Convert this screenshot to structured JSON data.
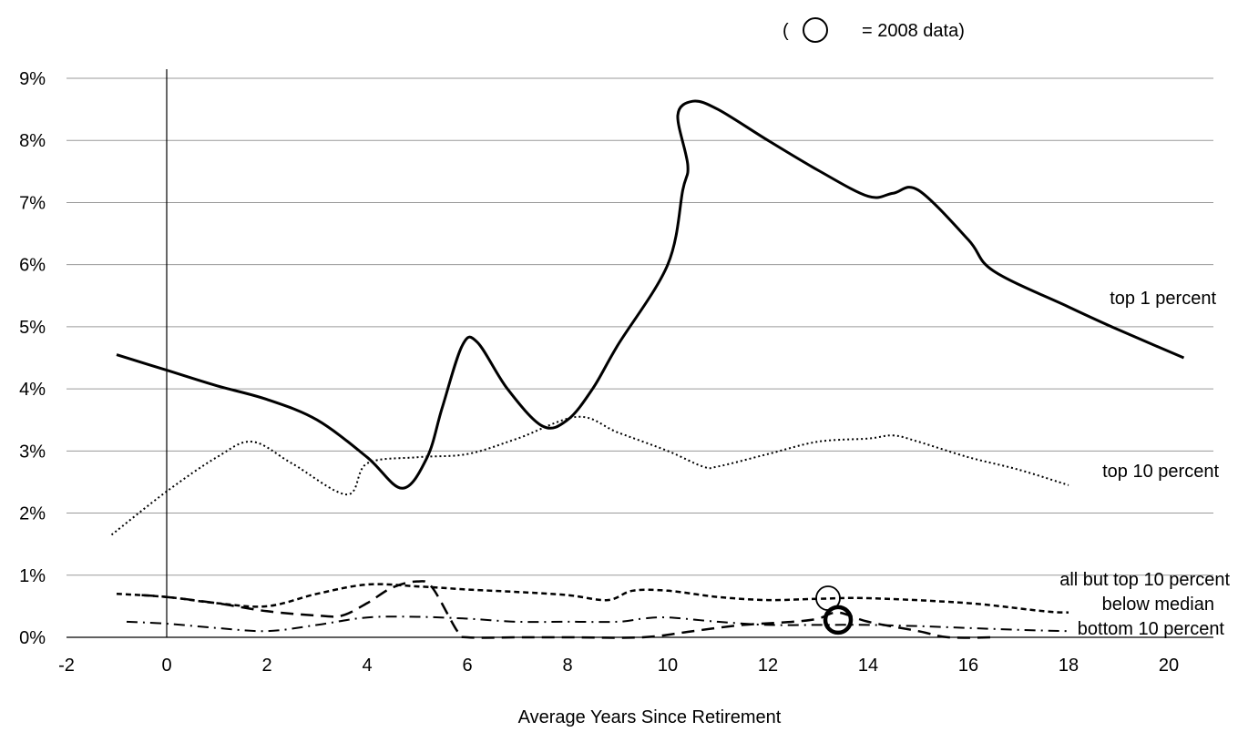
{
  "chart_data": {
    "type": "line",
    "title": "",
    "xlabel": "Average Years Since Retirement",
    "ylabel": "",
    "xlim": [
      -2,
      21
    ],
    "ylim": [
      0,
      0.09
    ],
    "x_ticks": [
      "-2",
      "0",
      "2",
      "4",
      "6",
      "8",
      "10",
      "12",
      "14",
      "16",
      "18",
      "20"
    ],
    "y_ticks": [
      "0%",
      "1%",
      "2%",
      "3%",
      "4%",
      "5%",
      "6%",
      "7%",
      "8%",
      "9%"
    ],
    "grid": "horizontal",
    "legend": "inline labels at line ends",
    "note": {
      "open": "(",
      "close": "= 2008 data)"
    },
    "series": [
      {
        "name": "top 1 percent",
        "points": [
          [
            -1,
            0.0455
          ],
          [
            0,
            0.043
          ],
          [
            1,
            0.0405
          ],
          [
            2,
            0.0383
          ],
          [
            3,
            0.035
          ],
          [
            4,
            0.029
          ],
          [
            4.7,
            0.024
          ],
          [
            5.2,
            0.029
          ],
          [
            5.5,
            0.037
          ],
          [
            5.9,
            0.047
          ],
          [
            6.2,
            0.0475
          ],
          [
            6.8,
            0.04
          ],
          [
            7.5,
            0.034
          ],
          [
            8,
            0.035
          ],
          [
            8.5,
            0.04
          ],
          [
            9,
            0.047
          ],
          [
            10,
            0.06
          ],
          [
            10.3,
            0.072
          ],
          [
            10.4,
            0.076
          ],
          [
            10.2,
            0.084
          ],
          [
            10.5,
            0.0863
          ],
          [
            11,
            0.085
          ],
          [
            12,
            0.08
          ],
          [
            13,
            0.0752
          ],
          [
            14,
            0.071
          ],
          [
            14.5,
            0.0715
          ],
          [
            15,
            0.072
          ],
          [
            16,
            0.064
          ],
          [
            16.5,
            0.059
          ],
          [
            18,
            0.0532
          ],
          [
            19,
            0.0495
          ],
          [
            20.3,
            0.045
          ]
        ]
      },
      {
        "name": "top 10 percent",
        "points": [
          [
            -1.1,
            0.0165
          ],
          [
            0,
            0.0235
          ],
          [
            1,
            0.029
          ],
          [
            1.7,
            0.0315
          ],
          [
            2.5,
            0.028
          ],
          [
            3.6,
            0.023
          ],
          [
            4,
            0.028
          ],
          [
            5,
            0.029
          ],
          [
            6,
            0.0295
          ],
          [
            7,
            0.032
          ],
          [
            8.2,
            0.0355
          ],
          [
            9,
            0.033
          ],
          [
            10,
            0.03
          ],
          [
            10.7,
            0.0275
          ],
          [
            11,
            0.0275
          ],
          [
            12,
            0.0295
          ],
          [
            13,
            0.0315
          ],
          [
            14,
            0.032
          ],
          [
            14.5,
            0.0325
          ],
          [
            15,
            0.0315
          ],
          [
            16,
            0.029
          ],
          [
            17,
            0.027
          ],
          [
            18,
            0.0245
          ]
        ]
      },
      {
        "name": "all but top 10 percent",
        "points": [
          [
            -1,
            0.007
          ],
          [
            0,
            0.0065
          ],
          [
            1,
            0.0055
          ],
          [
            2,
            0.005
          ],
          [
            3,
            0.007
          ],
          [
            4,
            0.0085
          ],
          [
            5,
            0.0082
          ],
          [
            6,
            0.0077
          ],
          [
            7,
            0.0073
          ],
          [
            8,
            0.0068
          ],
          [
            8.8,
            0.006
          ],
          [
            9.3,
            0.0075
          ],
          [
            10,
            0.0075
          ],
          [
            11,
            0.0065
          ],
          [
            12,
            0.006
          ],
          [
            13,
            0.0062
          ],
          [
            14,
            0.0063
          ],
          [
            16,
            0.0055
          ],
          [
            17.5,
            0.0042
          ],
          [
            18,
            0.004
          ]
        ]
      },
      {
        "name": "below median",
        "points": [
          [
            -0.5,
            0.0068
          ],
          [
            0,
            0.0065
          ],
          [
            1,
            0.0055
          ],
          [
            2,
            0.0042
          ],
          [
            3,
            0.0035
          ],
          [
            3.5,
            0.0035
          ],
          [
            4,
            0.0055
          ],
          [
            4.5,
            0.008
          ],
          [
            5,
            0.009
          ],
          [
            5.3,
            0.008
          ],
          [
            5.8,
            0.001
          ],
          [
            6,
            0.0
          ],
          [
            7,
            0.0
          ],
          [
            8,
            0.0
          ],
          [
            9.5,
            0.0
          ],
          [
            10.5,
            0.001
          ],
          [
            11.5,
            0.002
          ],
          [
            12.5,
            0.0025
          ],
          [
            13,
            0.003
          ],
          [
            13.4,
            0.004
          ],
          [
            14,
            0.0025
          ],
          [
            15,
            0.001
          ],
          [
            15.6,
            0.0
          ],
          [
            16.5,
            0.0
          ]
        ]
      },
      {
        "name": "bottom 10 percent",
        "points": [
          [
            -0.8,
            0.0025
          ],
          [
            0,
            0.0022
          ],
          [
            1,
            0.0015
          ],
          [
            2,
            0.001
          ],
          [
            3,
            0.002
          ],
          [
            4,
            0.0032
          ],
          [
            5,
            0.0033
          ],
          [
            6,
            0.003
          ],
          [
            7,
            0.0025
          ],
          [
            8,
            0.0025
          ],
          [
            9,
            0.0025
          ],
          [
            9.5,
            0.003
          ],
          [
            10,
            0.0032
          ],
          [
            11,
            0.0025
          ],
          [
            12,
            0.002
          ],
          [
            13,
            0.002
          ],
          [
            14,
            0.002
          ],
          [
            15,
            0.0018
          ],
          [
            16,
            0.0015
          ],
          [
            17,
            0.0012
          ],
          [
            18,
            0.001
          ]
        ]
      }
    ],
    "markers_2008": [
      {
        "x": 13.2,
        "y": 0.0063,
        "weight": "thin"
      },
      {
        "x": 13.4,
        "y": 0.0028,
        "weight": "bold"
      }
    ]
  }
}
